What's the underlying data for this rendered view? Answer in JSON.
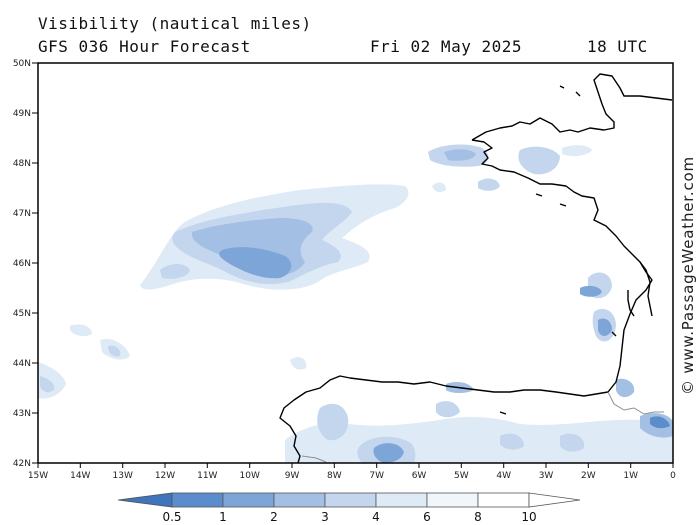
{
  "header": {
    "title": "Visibility (nautical miles)",
    "model": "GFS 036 Hour Forecast",
    "date": "Fri 02 May 2025",
    "time": "18 UTC"
  },
  "credit": "© www.PassageWeather.com",
  "axes": {
    "lat_labels": [
      "50N",
      "49N",
      "48N",
      "47N",
      "46N",
      "45N",
      "44N",
      "43N",
      "42N"
    ],
    "lon_labels": [
      "15W",
      "14W",
      "13W",
      "12W",
      "11W",
      "10W",
      "9W",
      "8W",
      "7W",
      "6W",
      "5W",
      "4W",
      "3W",
      "2W",
      "1W",
      "0"
    ]
  },
  "colorbar": {
    "labels": [
      "0.5",
      "1",
      "2",
      "3",
      "4",
      "6",
      "8",
      "10"
    ],
    "colors": [
      "#3f74be",
      "#5b8ccb",
      "#7ea5d8",
      "#a3bfe4",
      "#c3d6ee",
      "#deeaf6",
      "#f1f6fb"
    ]
  },
  "colors": {
    "coast": "#000000",
    "border": "#888888",
    "frame": "#000000"
  }
}
